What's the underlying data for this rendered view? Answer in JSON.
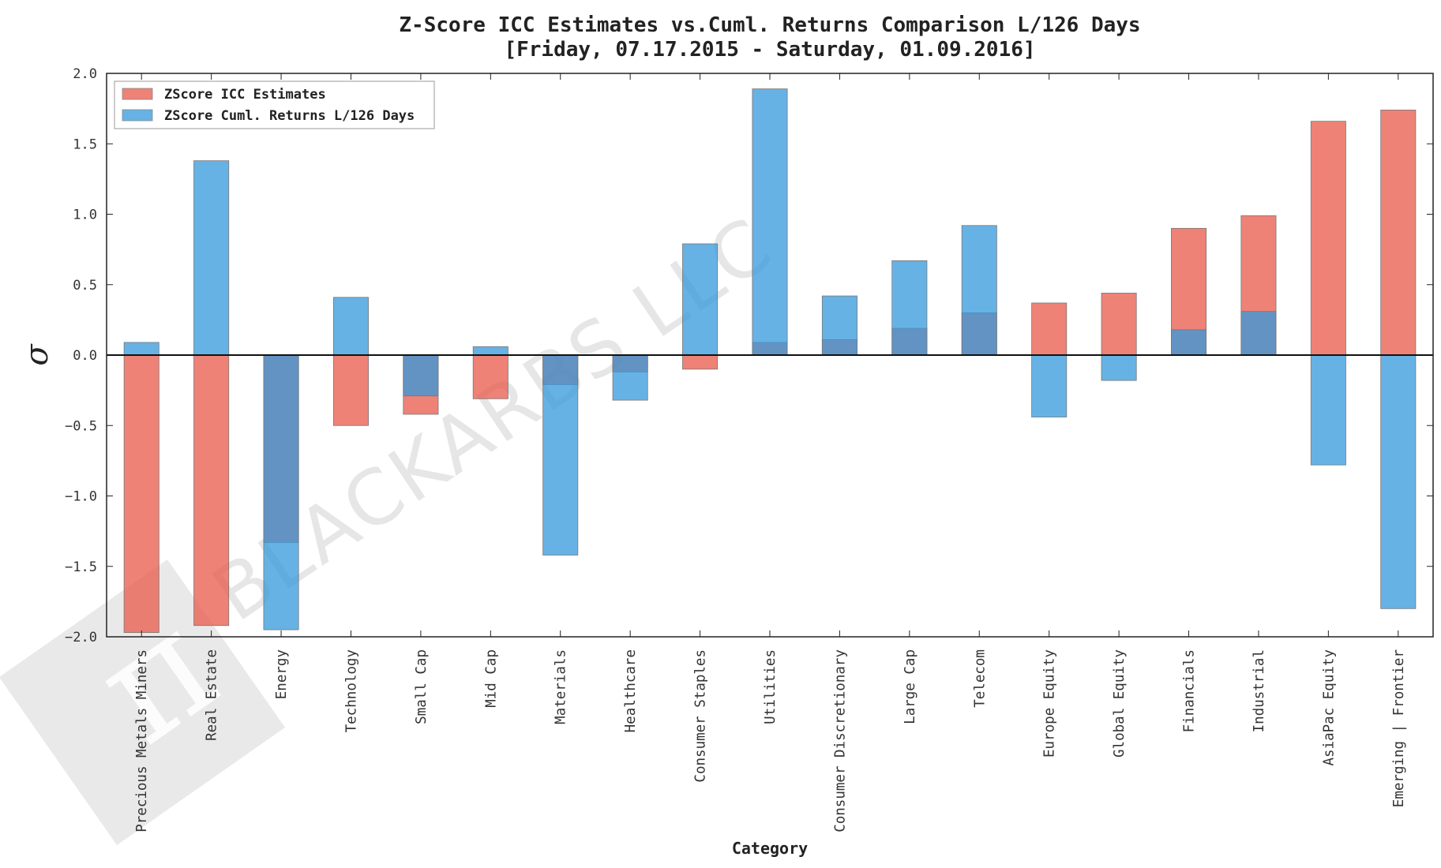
{
  "chart_data": {
    "type": "bar",
    "title": "Z-Score ICC Estimates vs.Cuml. Returns Comparison L/126 Days",
    "subtitle": "[Friday, 07.17.2015 - Saturday, 01.09.2016]",
    "xlabel": "Category",
    "ylabel": "σ",
    "ylim": [
      -2.0,
      2.0
    ],
    "yticks": [
      "2.0",
      "1.5",
      "1.0",
      "0.5",
      "0.0",
      "−0.5",
      "−1.0",
      "−1.5",
      "−2.0"
    ],
    "ytick_values": [
      2.0,
      1.5,
      1.0,
      0.5,
      0.0,
      -0.5,
      -1.0,
      -1.5,
      -2.0
    ],
    "grid": false,
    "legend_position": "top-left",
    "categories": [
      "Precious Metals Miners",
      "Real Estate",
      "Energy",
      "Technology",
      "Small Cap",
      "Mid Cap",
      "Materials",
      "Healthcare",
      "Consumer Staples",
      "Utilities",
      "Consumer Discretionary",
      "Large Cap",
      "Telecom",
      "Europe Equity",
      "Global Equity",
      "Financials",
      "Industrial",
      "AsiaPac Equity",
      "Emerging | Frontier"
    ],
    "series": [
      {
        "name": "ZScore ICC Estimates",
        "color": "#e8584a",
        "values": [
          -1.97,
          -1.92,
          -1.33,
          -0.5,
          -0.42,
          -0.31,
          -0.21,
          -0.12,
          -0.1,
          0.09,
          0.11,
          0.19,
          0.3,
          0.37,
          0.44,
          0.9,
          0.99,
          1.66,
          1.74
        ]
      },
      {
        "name": "ZScore Cuml. Returns L/126 Days",
        "color": "#3498db",
        "values": [
          0.09,
          1.38,
          -1.95,
          0.41,
          -0.29,
          0.06,
          -1.42,
          -0.32,
          0.79,
          1.89,
          0.42,
          0.67,
          0.92,
          -0.44,
          -0.18,
          0.18,
          0.31,
          -0.78,
          -1.8
        ]
      }
    ]
  },
  "watermark": {
    "text": "BLACKARBS LLC",
    "logo_glyph": "π"
  }
}
